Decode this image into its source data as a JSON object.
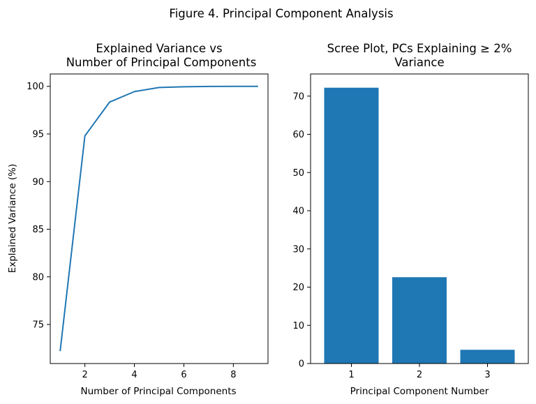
{
  "figure_title": "Figure 4. Principal Component Analysis",
  "colors": {
    "series": "#1f77b4",
    "axis": "#000000",
    "background": "#ffffff"
  },
  "chart_data": [
    {
      "type": "line",
      "title": "Explained Variance vs\nNumber of Principal Components",
      "title_lines": [
        "Explained Variance vs",
        "Number of Principal Components"
      ],
      "xlabel": "Number of Principal Components",
      "ylabel": "Explained Variance (%)",
      "x": [
        1,
        2,
        3,
        4,
        5,
        6,
        7,
        8,
        9
      ],
      "y": [
        72.2,
        94.8,
        98.35,
        99.45,
        99.88,
        99.95,
        99.99,
        100.0,
        100.0
      ],
      "xlim": [
        0.6,
        9.4
      ],
      "ylim": [
        70.9,
        101.3
      ],
      "xticks": [
        2,
        4,
        6,
        8
      ],
      "yticks": [
        75,
        80,
        85,
        90,
        95,
        100
      ],
      "grid": false,
      "color": "#1f77b4"
    },
    {
      "type": "bar",
      "title": "Scree Plot, PCs Explaining ≥ 2%\nVariance",
      "title_lines": [
        "Scree Plot, PCs Explaining ≥ 2%",
        "Variance"
      ],
      "xlabel": "Principal Component Number",
      "ylabel": "",
      "categories": [
        "1",
        "2",
        "3"
      ],
      "values": [
        72.2,
        22.6,
        3.6
      ],
      "ylim": [
        0,
        75.8
      ],
      "yticks": [
        0,
        10,
        20,
        30,
        40,
        50,
        60,
        70
      ],
      "grid": false,
      "color": "#1f77b4"
    }
  ]
}
